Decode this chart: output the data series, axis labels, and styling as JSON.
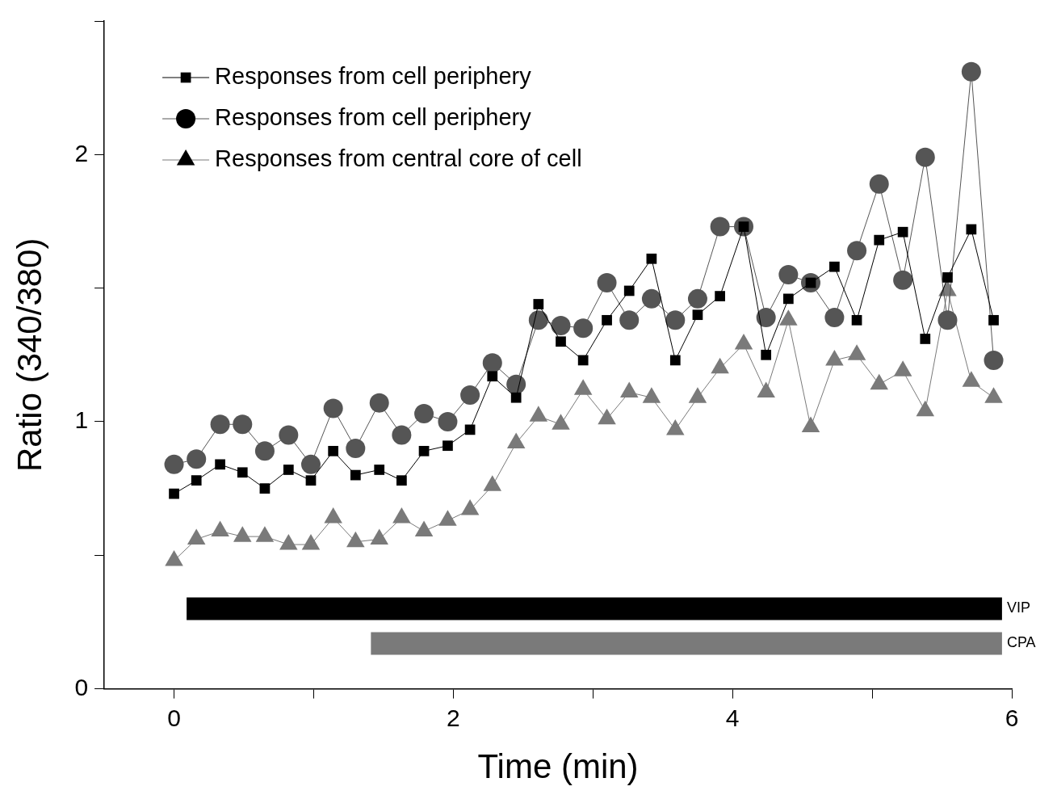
{
  "chart_data": {
    "type": "line",
    "xlabel": "Time (min)",
    "ylabel": "Ratio (340/380)",
    "x": [
      0,
      0.16,
      0.33,
      0.49,
      0.65,
      0.82,
      0.98,
      1.14,
      1.3,
      1.47,
      1.63,
      1.79,
      1.96,
      2.12,
      2.28,
      2.45,
      2.61,
      2.77,
      2.93,
      3.1,
      3.26,
      3.42,
      3.59,
      3.75,
      3.91,
      4.08,
      4.24,
      4.4,
      4.56,
      4.73,
      4.89,
      5.05,
      5.22,
      5.38,
      5.54,
      5.71,
      5.87
    ],
    "series": [
      {
        "name": "Responses from cell periphery",
        "color": "#000000",
        "marker": "square",
        "values": [
          0.73,
          0.78,
          0.84,
          0.81,
          0.75,
          0.82,
          0.78,
          0.89,
          0.8,
          0.82,
          0.78,
          0.89,
          0.91,
          0.97,
          1.17,
          1.09,
          1.44,
          1.3,
          1.23,
          1.38,
          1.49,
          1.61,
          1.23,
          1.4,
          1.47,
          1.73,
          1.25,
          1.46,
          1.52,
          1.58,
          1.38,
          1.68,
          1.71,
          1.31,
          1.54,
          1.72,
          1.38
        ]
      },
      {
        "name": "Responses from cell periphery",
        "color": "#555555",
        "marker": "circle",
        "values": [
          0.84,
          0.86,
          0.99,
          0.99,
          0.89,
          0.95,
          0.84,
          1.05,
          0.9,
          1.07,
          0.95,
          1.03,
          1.0,
          1.1,
          1.22,
          1.14,
          1.38,
          1.36,
          1.35,
          1.52,
          1.38,
          1.46,
          1.38,
          1.46,
          1.73,
          1.73,
          1.39,
          1.55,
          1.52,
          1.39,
          1.64,
          1.89,
          1.53,
          1.99,
          1.38,
          2.31,
          1.23
        ]
      },
      {
        "name": "Responses from central core of cell",
        "color": "#7a7a7a",
        "marker": "triangle",
        "values": [
          0.48,
          0.56,
          0.59,
          0.57,
          0.57,
          0.54,
          0.54,
          0.64,
          0.55,
          0.56,
          0.64,
          0.59,
          0.63,
          0.67,
          0.76,
          0.92,
          1.02,
          0.99,
          1.12,
          1.01,
          1.11,
          1.09,
          0.97,
          1.09,
          1.2,
          1.29,
          1.11,
          1.38,
          0.98,
          1.23,
          1.25,
          1.14,
          1.19,
          1.04,
          1.49,
          1.15,
          1.09
        ]
      },
      {
        "name": "VIP",
        "color": "#000000",
        "marker": "none",
        "x": [
          0.09,
          5.93
        ],
        "values": [
          0.3,
          0.3
        ]
      },
      {
        "name": "CPA",
        "color": "#7a7a7a",
        "marker": "none",
        "x": [
          1.41,
          5.93
        ],
        "values": [
          0.17,
          0.17
        ]
      }
    ],
    "xlim": [
      -0.5,
      6
    ],
    "xticks": [
      0,
      {
        "value": 1,
        "label": null
      },
      2,
      {
        "value": 3,
        "label": null
      },
      4,
      {
        "value": 5,
        "label": null
      },
      6
    ],
    "ylim": [
      0,
      2.5
    ],
    "yticks": [
      0,
      {
        "value": 0.5,
        "label": null
      },
      1,
      {
        "value": 1.5,
        "label": null
      },
      2,
      {
        "value": 2.5,
        "label": null
      }
    ],
    "grid": false,
    "legend": "top left"
  }
}
